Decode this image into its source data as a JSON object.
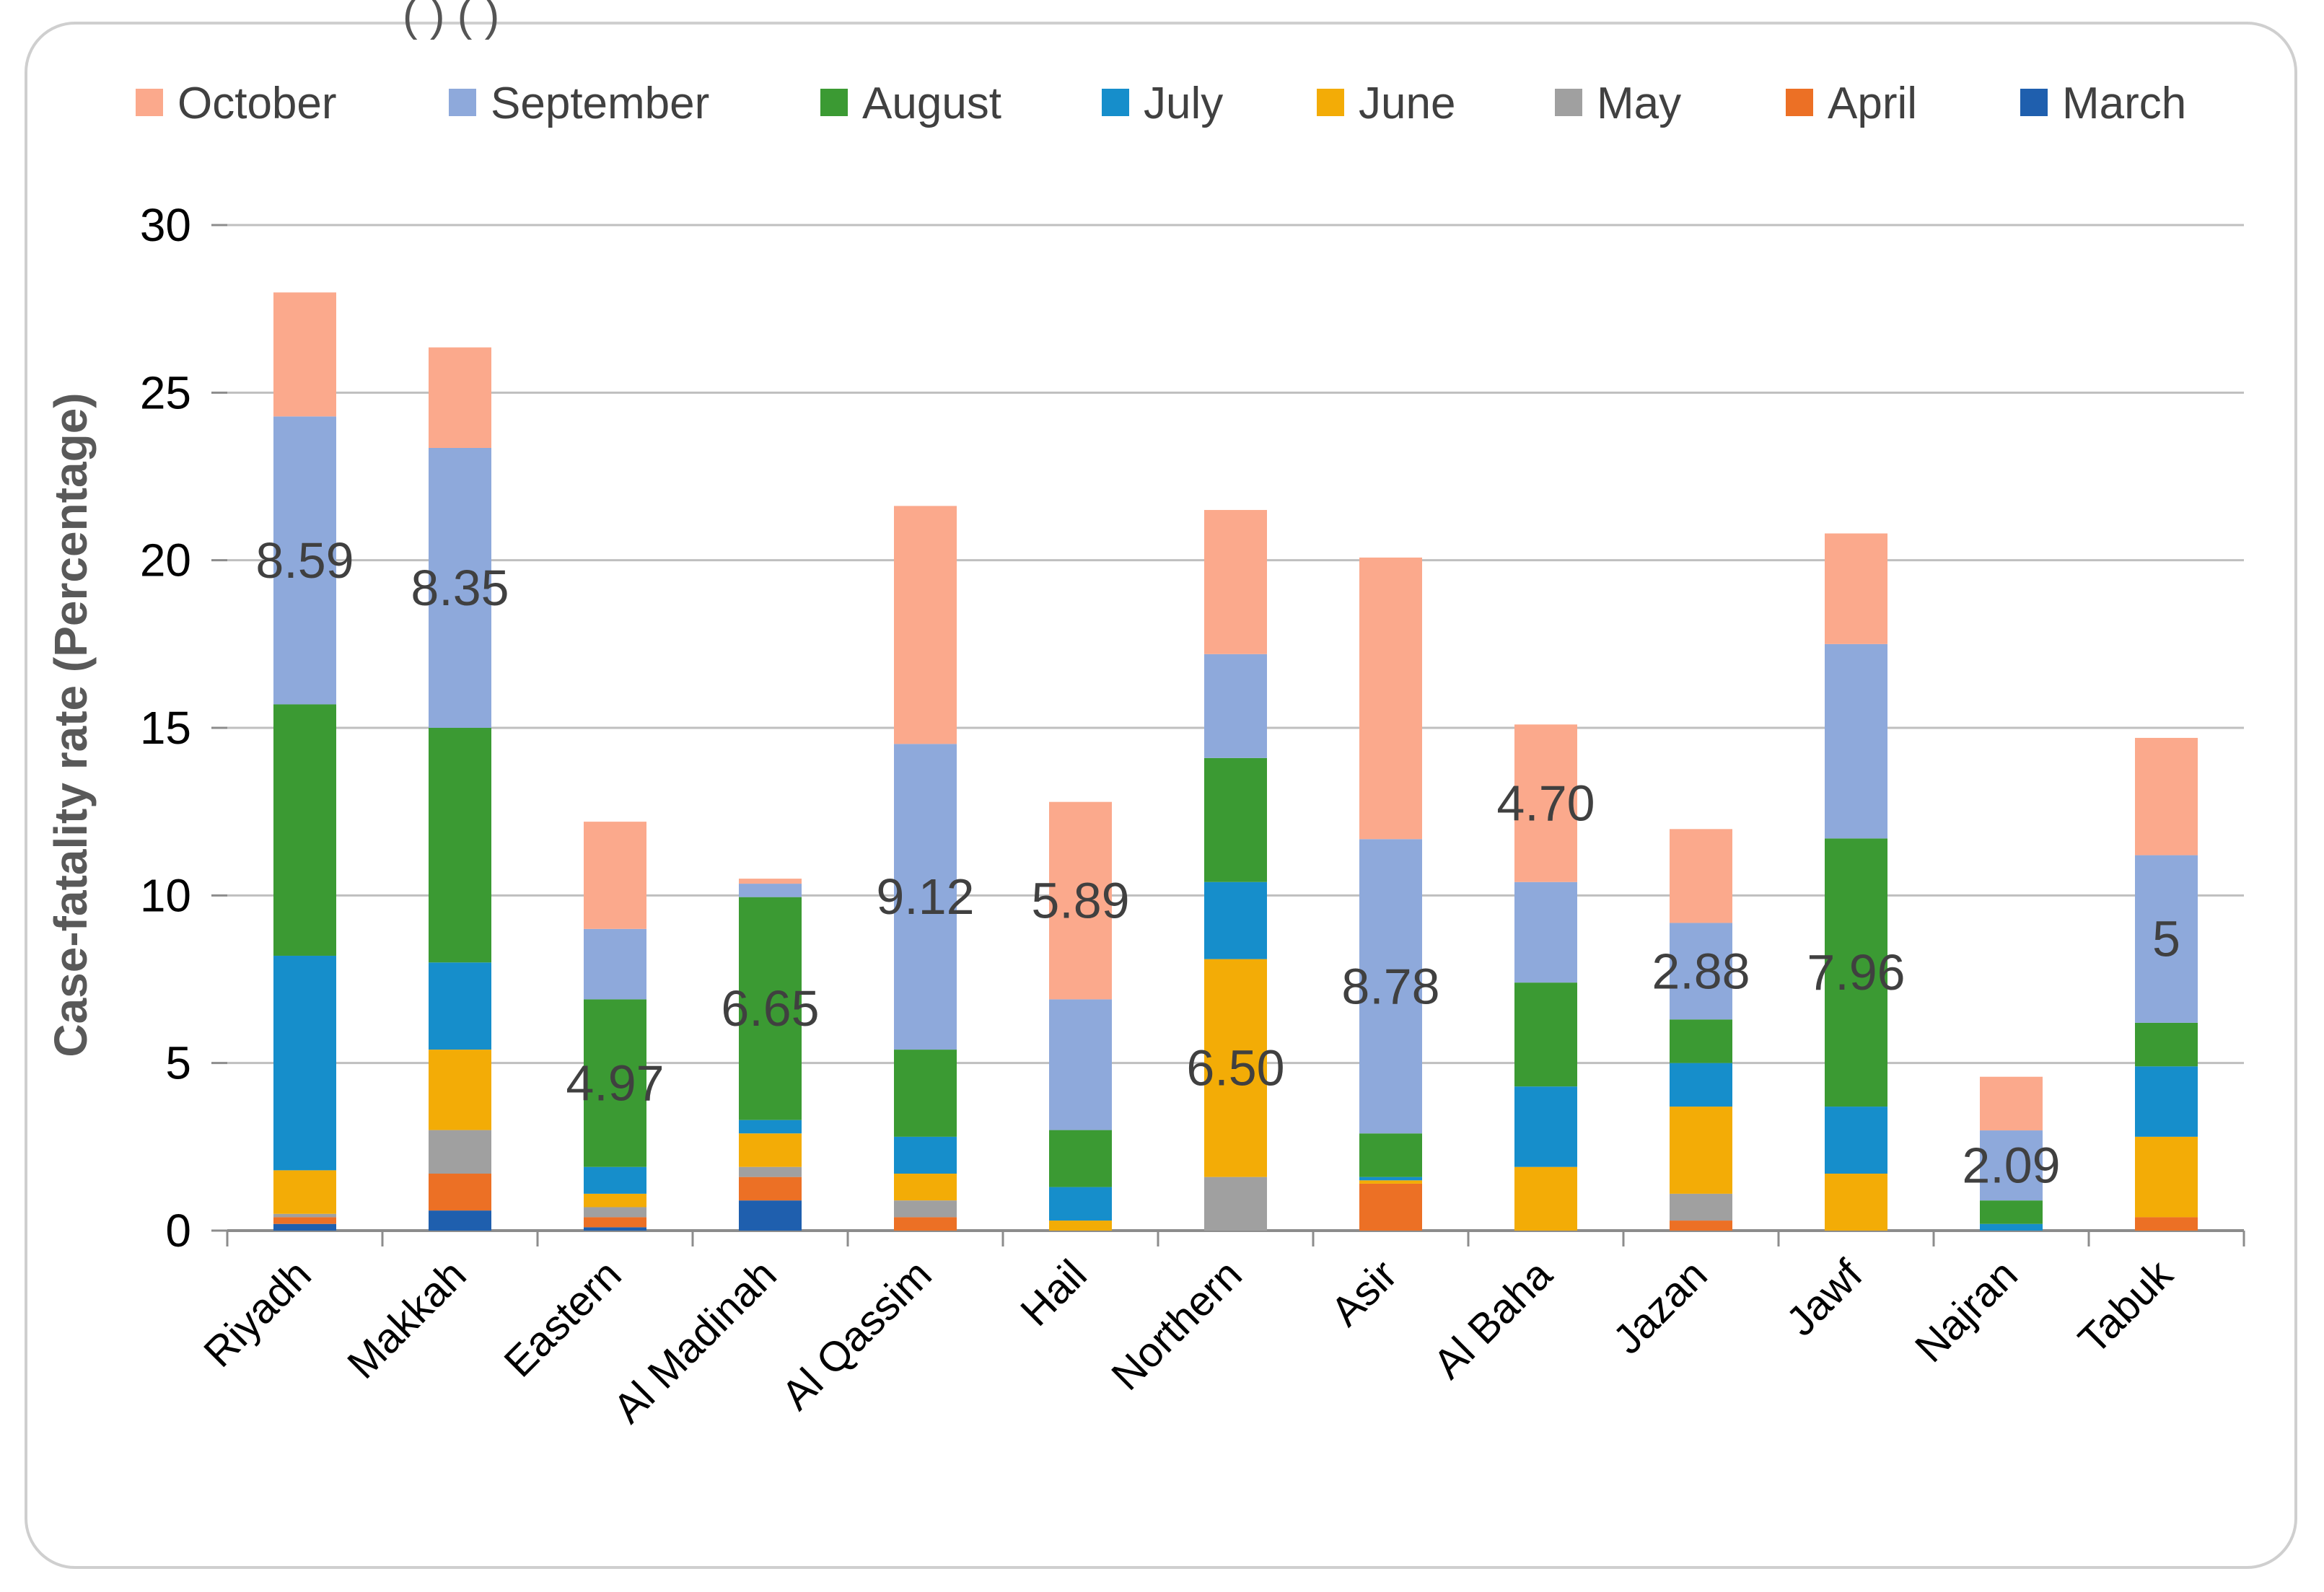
{
  "header_snippet": "( ) ( )",
  "chart_data": {
    "type": "bar",
    "stacked": true,
    "title": "",
    "xlabel": "",
    "ylabel": "Case-fatality rate (Percentage)",
    "ylim": [
      0,
      30
    ],
    "yticks": [
      0,
      5,
      10,
      15,
      20,
      25,
      30
    ],
    "grid": true,
    "legend_position": "top",
    "categories": [
      "Riyadh",
      "Makkah",
      "Eastern",
      "Al Madinah",
      "Al Qassim",
      "Hail",
      "Northern",
      "Asir",
      "Al Baha",
      "Jazan",
      "Jawf",
      "Najran",
      "Tabuk"
    ],
    "series": [
      {
        "name": "March",
        "color": "#1F5FAE",
        "values": [
          0.2,
          0.6,
          0.1,
          0.9,
          0.0,
          0.0,
          0.0,
          0.0,
          0.0,
          0.0,
          0.0,
          0.0,
          0.0
        ]
      },
      {
        "name": "April",
        "color": "#EC7025",
        "values": [
          0.2,
          1.1,
          0.3,
          0.7,
          0.4,
          0.0,
          0.0,
          1.4,
          0.0,
          0.3,
          0.0,
          0.0,
          0.4
        ]
      },
      {
        "name": "May",
        "color": "#A0A0A0",
        "values": [
          0.1,
          1.3,
          0.3,
          0.3,
          0.5,
          0.0,
          1.6,
          0.0,
          0.0,
          0.8,
          0.0,
          0.0,
          0.0
        ]
      },
      {
        "name": "June",
        "color": "#F3AC06",
        "values": [
          1.3,
          2.4,
          0.4,
          1.0,
          0.8,
          0.3,
          6.5,
          0.1,
          1.9,
          2.6,
          1.7,
          0.0,
          2.4
        ]
      },
      {
        "name": "July",
        "color": "#168ECB",
        "values": [
          6.4,
          2.6,
          0.8,
          0.4,
          1.1,
          1.0,
          2.3,
          0.1,
          2.4,
          1.3,
          2.0,
          0.2,
          2.1
        ]
      },
      {
        "name": "August",
        "color": "#3B9A33",
        "values": [
          7.5,
          7.0,
          5.0,
          6.65,
          2.6,
          1.7,
          3.7,
          1.3,
          3.1,
          1.3,
          8.0,
          0.7,
          1.3
        ]
      },
      {
        "name": "September",
        "color": "#8EA9DB",
        "values": [
          8.59,
          8.35,
          2.1,
          0.4,
          9.12,
          3.9,
          3.1,
          8.78,
          3.0,
          2.88,
          5.8,
          2.09,
          5.0
        ]
      },
      {
        "name": "October",
        "color": "#FBA98C",
        "values": [
          3.7,
          3.0,
          3.2,
          0.15,
          7.1,
          5.89,
          4.3,
          8.4,
          4.7,
          2.8,
          3.3,
          1.6,
          3.5
        ]
      }
    ],
    "data_labels": [
      {
        "category": "Riyadh",
        "series": "September",
        "text": "8.59"
      },
      {
        "category": "Makkah",
        "series": "September",
        "text": "8.35"
      },
      {
        "category": "Eastern",
        "series": "August",
        "text": "4.97"
      },
      {
        "category": "Al Madinah",
        "series": "August",
        "text": "6.65"
      },
      {
        "category": "Al Qassim",
        "series": "September",
        "text": "9.12"
      },
      {
        "category": "Hail",
        "series": "October",
        "text": "5.89"
      },
      {
        "category": "Northern",
        "series": "June",
        "text": "6.50"
      },
      {
        "category": "Asir",
        "series": "September",
        "text": "8.78"
      },
      {
        "category": "Al Baha",
        "series": "October",
        "text": "4.70"
      },
      {
        "category": "Jazan",
        "series": "September",
        "text": "2.88"
      },
      {
        "category": "Jawf",
        "series": "August",
        "text": "7.96"
      },
      {
        "category": "Najran",
        "series": "September",
        "text": "2.09"
      },
      {
        "category": "Tabuk",
        "series": "September",
        "text": "5"
      }
    ],
    "legend_order": [
      "October",
      "September",
      "August",
      "July",
      "June",
      "May",
      "April",
      "March"
    ]
  }
}
